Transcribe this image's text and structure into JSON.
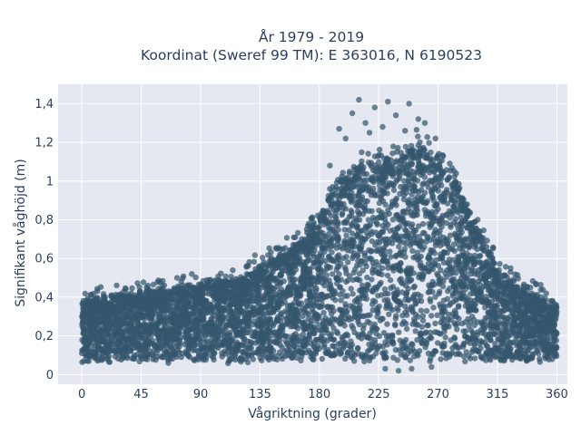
{
  "chart_data": {
    "type": "scatter",
    "title_line1": "År 1979 - 2019",
    "title_line2": "Koordinat (Sweref 99 TM): E 363016, N 6190523",
    "xlabel": "Vågriktning (grader)",
    "ylabel": "Signifikant våghöjd (m)",
    "xlim": [
      -18,
      368
    ],
    "ylim": [
      -0.05,
      1.5
    ],
    "x_ticks": [
      0,
      45,
      90,
      135,
      180,
      225,
      270,
      315,
      360
    ],
    "x_tick_labels": [
      "0",
      "45",
      "90",
      "135",
      "180",
      "225",
      "270",
      "315",
      "360"
    ],
    "y_ticks": [
      0,
      0.2,
      0.4,
      0.6,
      0.8,
      1.0,
      1.2,
      1.4
    ],
    "y_tick_labels": [
      "0",
      "0,2",
      "0,4",
      "0,6",
      "0,8",
      "1",
      "1,2",
      "1,4"
    ],
    "grid": true,
    "envelope": {
      "direction": [
        0,
        20,
        45,
        60,
        90,
        120,
        135,
        150,
        165,
        180,
        195,
        210,
        225,
        240,
        255,
        265,
        275,
        290,
        300,
        315,
        330,
        345,
        360
      ],
      "upper_height": [
        0.38,
        0.4,
        0.42,
        0.44,
        0.46,
        0.5,
        0.56,
        0.62,
        0.68,
        0.82,
        1.0,
        1.08,
        1.1,
        1.12,
        1.2,
        1.14,
        1.08,
        0.9,
        0.75,
        0.55,
        0.45,
        0.4,
        0.35
      ],
      "lower_height": [
        0.07,
        0.07,
        0.07,
        0.07,
        0.07,
        0.07,
        0.07,
        0.07,
        0.07,
        0.07,
        0.07,
        0.07,
        0.07,
        0.07,
        0.07,
        0.07,
        0.07,
        0.07,
        0.07,
        0.07,
        0.07,
        0.07,
        0.07
      ]
    },
    "outliers": [
      [
        210,
        1.42
      ],
      [
        222,
        1.38
      ],
      [
        232,
        1.41
      ],
      [
        248,
        1.4
      ],
      [
        205,
        1.35
      ],
      [
        238,
        1.34
      ],
      [
        215,
        1.3
      ],
      [
        228,
        1.28
      ],
      [
        260,
        1.3
      ],
      [
        195,
        1.27
      ],
      [
        245,
        1.26
      ],
      [
        268,
        1.22
      ],
      [
        200,
        1.22
      ],
      [
        255,
        1.32
      ],
      [
        218,
        1.25
      ],
      [
        188,
        1.08
      ],
      [
        285,
        0.95
      ],
      [
        292,
        0.88
      ],
      [
        300,
        0.8
      ],
      [
        165,
        0.68
      ],
      [
        150,
        0.62
      ],
      [
        138,
        0.58
      ],
      [
        125,
        0.52
      ],
      [
        110,
        0.47
      ],
      [
        100,
        0.48
      ],
      [
        85,
        0.43
      ],
      [
        50,
        0.46
      ],
      [
        30,
        0.4
      ],
      [
        10,
        0.39
      ],
      [
        325,
        0.55
      ],
      [
        340,
        0.45
      ],
      [
        355,
        0.38
      ],
      [
        240,
        0.02
      ],
      [
        250,
        0.03
      ],
      [
        230,
        0.03
      ],
      [
        265,
        0.04
      ]
    ],
    "series": [
      {
        "color": "#34566d"
      }
    ]
  }
}
